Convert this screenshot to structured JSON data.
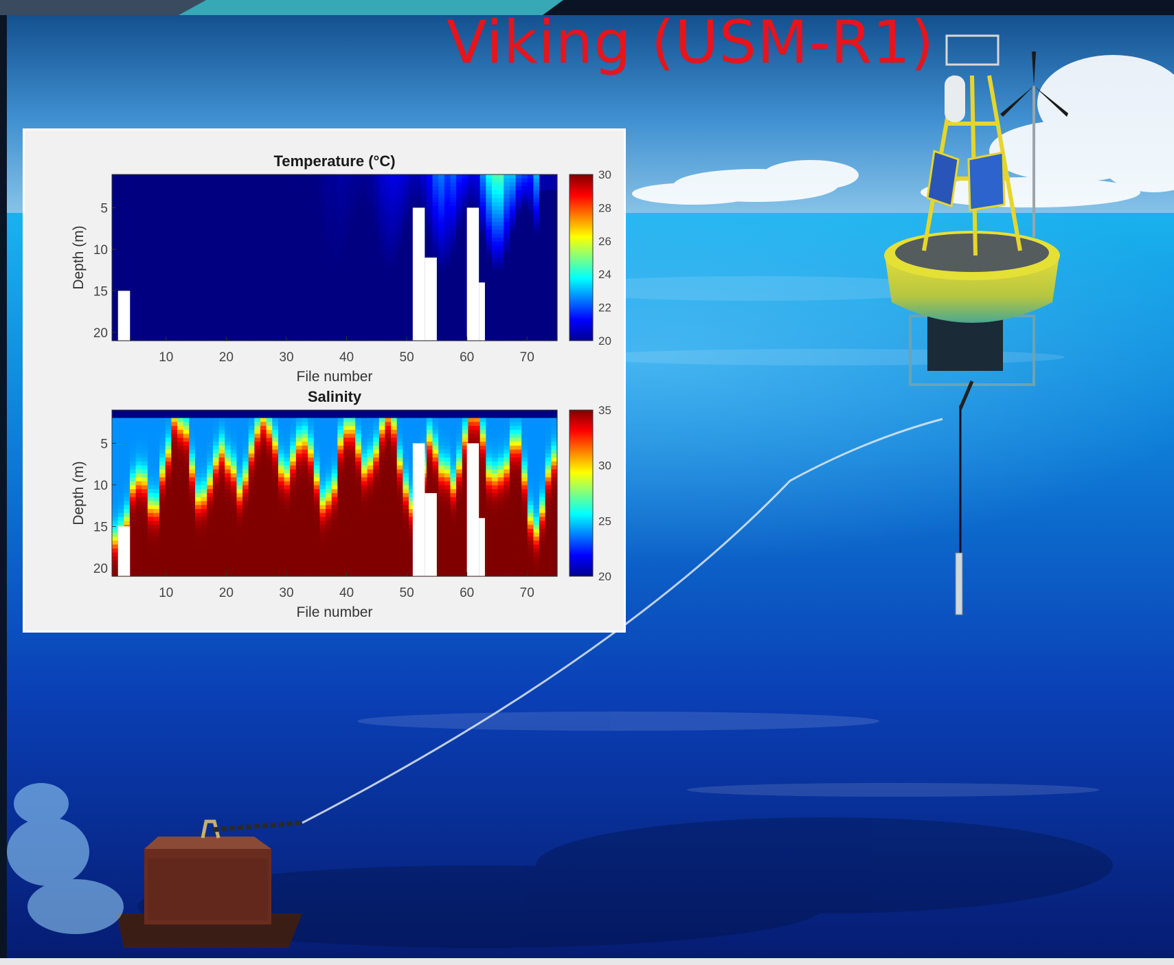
{
  "slide": {
    "title": "Viking (USM-R1)"
  },
  "colors": {
    "title_red": "#e8141c",
    "sea_deep": "#0a2a9a",
    "sea_light": "#1ea3e6",
    "sky_top": "#1a5ea8",
    "buoy_yellow": "#d8d230"
  },
  "chart_data": [
    {
      "type": "heatmap",
      "title": "Temperature (°C)",
      "xlabel": "File number",
      "ylabel": "Depth (m)",
      "xlim": [
        1,
        75
      ],
      "ylim": [
        1,
        21
      ],
      "x_ticks": [
        "10",
        "20",
        "30",
        "40",
        "50",
        "60",
        "70"
      ],
      "y_ticks": [
        "5",
        "10",
        "15",
        "20"
      ],
      "colorbar": {
        "min": 20,
        "max": 30,
        "ticks": [
          "30",
          "28",
          "26",
          "24",
          "22",
          "20"
        ]
      },
      "colormap": "jet",
      "background_value": 20,
      "upper_layer_max_value": 25,
      "missing_data_columns": [
        {
          "x_start": 2,
          "x_end": 4,
          "depth_from": 15
        },
        {
          "x_start": 51,
          "x_end": 53,
          "depth_from": 5
        },
        {
          "x_start": 53,
          "x_end": 55,
          "depth_from": 11
        },
        {
          "x_start": 60,
          "x_end": 62,
          "depth_from": 5
        },
        {
          "x_start": 62,
          "x_end": 63,
          "depth_from": 14
        }
      ]
    },
    {
      "type": "heatmap",
      "title": "Salinity",
      "xlabel": "File number",
      "ylabel": "Depth (m)",
      "xlim": [
        1,
        75
      ],
      "ylim": [
        1,
        21
      ],
      "x_ticks": [
        "10",
        "20",
        "30",
        "40",
        "50",
        "60",
        "70"
      ],
      "y_ticks": [
        "5",
        "10",
        "15",
        "20"
      ],
      "colorbar": {
        "min": 20,
        "max": 35,
        "ticks": [
          "35",
          "30",
          "25",
          "20"
        ]
      },
      "colormap": "jet",
      "surface_value": 20,
      "bottom_value": 35,
      "missing_data_columns": [
        {
          "x_start": 2,
          "x_end": 4,
          "depth_from": 15
        },
        {
          "x_start": 51,
          "x_end": 53,
          "depth_from": 5
        },
        {
          "x_start": 53,
          "x_end": 55,
          "depth_from": 11
        },
        {
          "x_start": 60,
          "x_end": 62,
          "depth_from": 5
        },
        {
          "x_start": 62,
          "x_end": 63,
          "depth_from": 14
        }
      ]
    }
  ]
}
